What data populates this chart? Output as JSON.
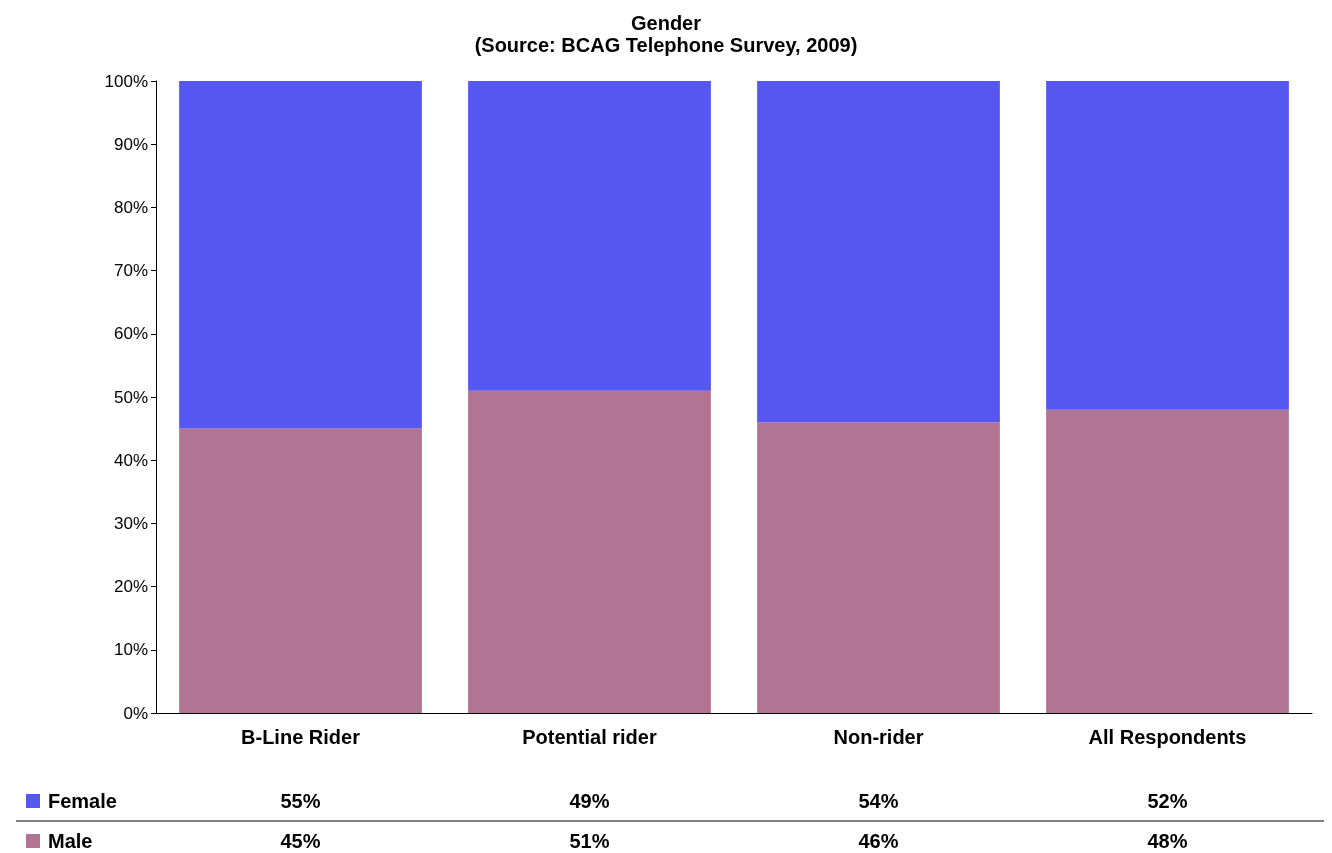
{
  "chart_data": {
    "type": "bar",
    "title": "Gender",
    "subtitle": "(Source: BCAG Telephone Survey, 2009)",
    "categories": [
      "B-Line Rider",
      "Potential rider",
      "Non-rider",
      "All Respondents"
    ],
    "stacked": true,
    "ylim": [
      0,
      100
    ],
    "yticks": [
      {
        "value": 0,
        "label": "0%"
      },
      {
        "value": 10,
        "label": "10%"
      },
      {
        "value": 20,
        "label": "20%"
      },
      {
        "value": 30,
        "label": "30%"
      },
      {
        "value": 40,
        "label": "40%"
      },
      {
        "value": 50,
        "label": "50%"
      },
      {
        "value": 60,
        "label": "60%"
      },
      {
        "value": 70,
        "label": "70%"
      },
      {
        "value": 80,
        "label": "80%"
      },
      {
        "value": 90,
        "label": "90%"
      },
      {
        "value": 100,
        "label": "100%"
      }
    ],
    "series": [
      {
        "name": "Male",
        "color": "#b27493",
        "values": [
          45,
          51,
          46,
          48
        ],
        "value_labels": [
          "45%",
          "51%",
          "46%",
          "48%"
        ]
      },
      {
        "name": "Female",
        "color": "#5656f0",
        "values": [
          55,
          49,
          54,
          52
        ],
        "value_labels": [
          "55%",
          "49%",
          "54%",
          "52%"
        ]
      }
    ],
    "grid": false,
    "legend": "bottom"
  }
}
